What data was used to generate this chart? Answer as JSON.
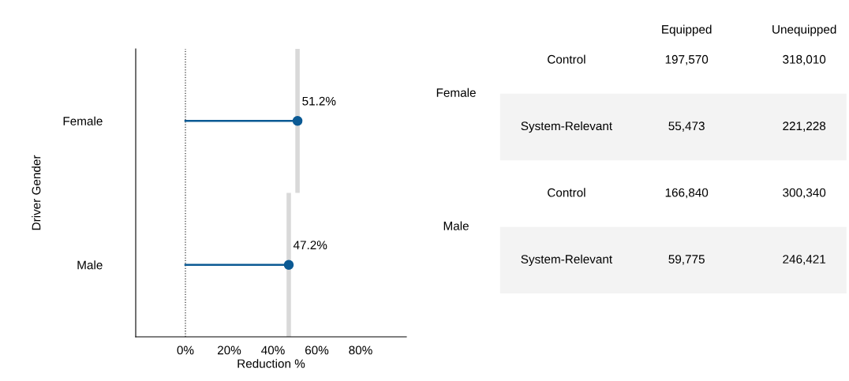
{
  "chart_data": [
    {
      "type": "lollipop",
      "xlabel": "Reduction %",
      "ylabel": "Driver Gender",
      "orientation": "horizontal",
      "categories": [
        "Female",
        "Male"
      ],
      "series": [
        {
          "color": "#0b5a94",
          "values": [
            51.2,
            47.2
          ],
          "value_labels": [
            "51.2%",
            "47.2%"
          ]
        }
      ],
      "xlim": [
        -22.7,
        100.9
      ],
      "xticks": [
        {
          "value": 0,
          "label": "0%"
        },
        {
          "value": 20,
          "label": "20%"
        },
        {
          "value": 40,
          "label": "40%"
        },
        {
          "value": 60,
          "label": "60%"
        },
        {
          "value": 80,
          "label": "80%"
        }
      ],
      "marker": "circle",
      "grid": false,
      "legend": false,
      "ref_lines": [
        {
          "axis": "x",
          "value": 0,
          "color": "#333333",
          "line_style": "dotted"
        },
        {
          "axis": "x",
          "value": 51.2,
          "color": "#d9d9d9",
          "line_style": "solid"
        },
        {
          "axis": "x",
          "value": 47.2,
          "color": "#d9d9d9",
          "line_style": "solid"
        }
      ]
    },
    {
      "type": "other",
      "categories": [
        "Equipped",
        "Unequipped"
      ],
      "y_categories": [
        "Control",
        "System-Relevant",
        "Control",
        "System-Relevant"
      ],
      "y2_categories": [
        "Female",
        null,
        "Male",
        null
      ],
      "cell_labels": [
        [
          "197,570",
          "318,010"
        ],
        [
          "55,473",
          "221,228"
        ],
        [
          "166,840",
          "300,340"
        ],
        [
          "59,775",
          "246,421"
        ]
      ],
      "data_labels": true
    }
  ]
}
